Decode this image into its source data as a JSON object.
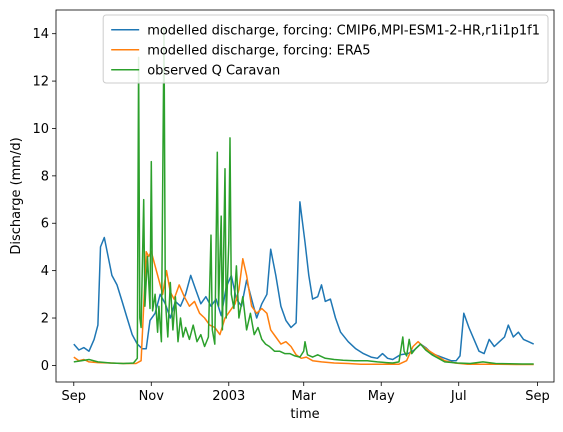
{
  "chart_data": {
    "type": "line",
    "xlabel": "time",
    "ylabel": "Discharge (mm/d)",
    "xlim": [
      "2002-08-18",
      "2003-09-14"
    ],
    "ylim": [
      -0.7,
      15.0
    ],
    "grid": false,
    "legend_position": "top-right",
    "x_ticks": [
      {
        "date": "2002-09-01",
        "label": "Sep"
      },
      {
        "date": "2002-11-01",
        "label": "Nov"
      },
      {
        "date": "2003-01-01",
        "label": "2003"
      },
      {
        "date": "2003-03-01",
        "label": "Mar"
      },
      {
        "date": "2003-05-01",
        "label": "May"
      },
      {
        "date": "2003-07-01",
        "label": "Jul"
      },
      {
        "date": "2003-09-01",
        "label": "Sep"
      }
    ],
    "y_ticks": [
      0,
      2,
      4,
      6,
      8,
      10,
      12,
      14
    ],
    "series": [
      {
        "name": "modelled discharge, forcing: CMIP6,MPI-ESM1-2-HR,r1i1p1f1",
        "color": "#1f77b4",
        "points": [
          [
            "2002-09-01",
            0.9
          ],
          [
            "2002-09-05",
            0.65
          ],
          [
            "2002-09-09",
            0.75
          ],
          [
            "2002-09-13",
            0.6
          ],
          [
            "2002-09-17",
            1.1
          ],
          [
            "2002-09-20",
            1.7
          ],
          [
            "2002-09-22",
            5.0
          ],
          [
            "2002-09-25",
            5.4
          ],
          [
            "2002-09-28",
            4.6
          ],
          [
            "2002-10-01",
            3.8
          ],
          [
            "2002-10-05",
            3.4
          ],
          [
            "2002-10-09",
            2.7
          ],
          [
            "2002-10-13",
            2.0
          ],
          [
            "2002-10-17",
            1.3
          ],
          [
            "2002-10-21",
            0.9
          ],
          [
            "2002-10-25",
            0.7
          ],
          [
            "2002-10-28",
            0.7
          ],
          [
            "2002-10-31",
            1.9
          ],
          [
            "2002-11-04",
            2.2
          ],
          [
            "2002-11-08",
            3.0
          ],
          [
            "2002-11-12",
            2.6
          ],
          [
            "2002-11-16",
            2.0
          ],
          [
            "2002-11-20",
            2.7
          ],
          [
            "2002-11-24",
            2.5
          ],
          [
            "2002-11-28",
            3.0
          ],
          [
            "2002-12-02",
            3.8
          ],
          [
            "2002-12-06",
            3.2
          ],
          [
            "2002-12-10",
            2.6
          ],
          [
            "2002-12-14",
            2.9
          ],
          [
            "2002-12-18",
            2.5
          ],
          [
            "2002-12-22",
            2.8
          ],
          [
            "2002-12-26",
            2.1
          ],
          [
            "2002-12-30",
            3.3
          ],
          [
            "2003-01-03",
            3.8
          ],
          [
            "2003-01-07",
            2.8
          ],
          [
            "2003-01-11",
            2.5
          ],
          [
            "2003-01-15",
            3.6
          ],
          [
            "2003-01-19",
            2.8
          ],
          [
            "2003-01-23",
            2.0
          ],
          [
            "2003-01-27",
            2.6
          ],
          [
            "2003-01-31",
            3.0
          ],
          [
            "2003-02-03",
            4.9
          ],
          [
            "2003-02-07",
            3.8
          ],
          [
            "2003-02-11",
            2.5
          ],
          [
            "2003-02-15",
            1.9
          ],
          [
            "2003-02-19",
            1.6
          ],
          [
            "2003-02-23",
            1.8
          ],
          [
            "2003-02-26",
            6.9
          ],
          [
            "2003-03-02",
            5.2
          ],
          [
            "2003-03-05",
            3.8
          ],
          [
            "2003-03-08",
            2.8
          ],
          [
            "2003-03-12",
            2.9
          ],
          [
            "2003-03-15",
            3.4
          ],
          [
            "2003-03-18",
            2.7
          ],
          [
            "2003-03-22",
            2.8
          ],
          [
            "2003-03-26",
            2.0
          ],
          [
            "2003-03-30",
            1.4
          ],
          [
            "2003-04-05",
            1.0
          ],
          [
            "2003-04-11",
            0.7
          ],
          [
            "2003-04-17",
            0.5
          ],
          [
            "2003-04-23",
            0.35
          ],
          [
            "2003-04-28",
            0.3
          ],
          [
            "2003-05-02",
            0.5
          ],
          [
            "2003-05-06",
            0.3
          ],
          [
            "2003-05-10",
            0.25
          ],
          [
            "2003-05-16",
            0.45
          ],
          [
            "2003-05-22",
            0.5
          ],
          [
            "2003-05-27",
            0.65
          ],
          [
            "2003-06-01",
            0.9
          ],
          [
            "2003-06-05",
            0.75
          ],
          [
            "2003-06-10",
            0.5
          ],
          [
            "2003-06-15",
            0.4
          ],
          [
            "2003-06-20",
            0.3
          ],
          [
            "2003-06-25",
            0.2
          ],
          [
            "2003-06-29",
            0.2
          ],
          [
            "2003-07-02",
            0.4
          ],
          [
            "2003-07-05",
            2.2
          ],
          [
            "2003-07-09",
            1.6
          ],
          [
            "2003-07-13",
            1.1
          ],
          [
            "2003-07-17",
            0.6
          ],
          [
            "2003-07-21",
            0.5
          ],
          [
            "2003-07-25",
            1.1
          ],
          [
            "2003-07-29",
            0.8
          ],
          [
            "2003-08-02",
            1.0
          ],
          [
            "2003-08-06",
            1.2
          ],
          [
            "2003-08-09",
            1.7
          ],
          [
            "2003-08-13",
            1.2
          ],
          [
            "2003-08-17",
            1.4
          ],
          [
            "2003-08-21",
            1.1
          ],
          [
            "2003-08-25",
            1.0
          ],
          [
            "2003-08-29",
            0.9
          ]
        ]
      },
      {
        "name": "modelled discharge, forcing: ERA5",
        "color": "#ff7f0e",
        "points": [
          [
            "2002-09-01",
            0.35
          ],
          [
            "2002-09-05",
            0.2
          ],
          [
            "2002-09-09",
            0.25
          ],
          [
            "2002-09-13",
            0.15
          ],
          [
            "2002-09-20",
            0.12
          ],
          [
            "2002-09-30",
            0.1
          ],
          [
            "2002-10-10",
            0.08
          ],
          [
            "2002-10-20",
            0.08
          ],
          [
            "2002-10-24",
            0.2
          ],
          [
            "2002-10-26",
            2.5
          ],
          [
            "2002-10-28",
            4.8
          ],
          [
            "2002-10-30",
            4.6
          ],
          [
            "2002-11-01",
            4.8
          ],
          [
            "2002-11-04",
            4.2
          ],
          [
            "2002-11-07",
            3.6
          ],
          [
            "2002-11-10",
            3.0
          ],
          [
            "2002-11-13",
            4.0
          ],
          [
            "2002-11-16",
            3.1
          ],
          [
            "2002-11-19",
            2.8
          ],
          [
            "2002-11-23",
            3.4
          ],
          [
            "2002-11-27",
            2.9
          ],
          [
            "2002-12-01",
            2.5
          ],
          [
            "2002-12-05",
            2.7
          ],
          [
            "2002-12-09",
            2.2
          ],
          [
            "2002-12-13",
            2.0
          ],
          [
            "2002-12-17",
            1.7
          ],
          [
            "2002-12-21",
            1.6
          ],
          [
            "2002-12-25",
            1.3
          ],
          [
            "2002-12-29",
            2.0
          ],
          [
            "2003-01-02",
            2.3
          ],
          [
            "2003-01-06",
            2.6
          ],
          [
            "2003-01-09",
            3.2
          ],
          [
            "2003-01-12",
            4.5
          ],
          [
            "2003-01-15",
            3.8
          ],
          [
            "2003-01-19",
            2.5
          ],
          [
            "2003-01-23",
            2.2
          ],
          [
            "2003-01-27",
            2.4
          ],
          [
            "2003-01-31",
            2.2
          ],
          [
            "2003-02-03",
            1.5
          ],
          [
            "2003-02-07",
            1.2
          ],
          [
            "2003-02-11",
            0.9
          ],
          [
            "2003-02-15",
            1.0
          ],
          [
            "2003-02-19",
            0.8
          ],
          [
            "2003-02-23",
            0.45
          ],
          [
            "2003-02-27",
            0.3
          ],
          [
            "2003-03-03",
            0.35
          ],
          [
            "2003-03-08",
            0.2
          ],
          [
            "2003-03-15",
            0.15
          ],
          [
            "2003-03-25",
            0.1
          ],
          [
            "2003-04-05",
            0.08
          ],
          [
            "2003-04-15",
            0.05
          ],
          [
            "2003-04-25",
            0.05
          ],
          [
            "2003-05-05",
            0.05
          ],
          [
            "2003-05-15",
            0.05
          ],
          [
            "2003-05-21",
            0.2
          ],
          [
            "2003-05-26",
            0.8
          ],
          [
            "2003-05-30",
            1.0
          ],
          [
            "2003-06-03",
            0.8
          ],
          [
            "2003-06-08",
            0.6
          ],
          [
            "2003-06-14",
            0.4
          ],
          [
            "2003-06-20",
            0.2
          ],
          [
            "2003-06-28",
            0.1
          ],
          [
            "2003-07-08",
            0.05
          ],
          [
            "2003-07-20",
            0.05
          ],
          [
            "2003-08-01",
            0.05
          ],
          [
            "2003-08-15",
            0.04
          ],
          [
            "2003-08-29",
            0.04
          ]
        ]
      },
      {
        "name": "observed Q Caravan",
        "color": "#2ca02c",
        "points": [
          [
            "2002-09-01",
            0.15
          ],
          [
            "2002-09-07",
            0.2
          ],
          [
            "2002-09-13",
            0.25
          ],
          [
            "2002-09-20",
            0.15
          ],
          [
            "2002-09-30",
            0.1
          ],
          [
            "2002-10-10",
            0.08
          ],
          [
            "2002-10-18",
            0.1
          ],
          [
            "2002-10-21",
            0.3
          ],
          [
            "2002-10-22",
            13.0
          ],
          [
            "2002-10-23",
            2.0
          ],
          [
            "2002-10-24",
            1.6
          ],
          [
            "2002-10-26",
            7.0
          ],
          [
            "2002-10-27",
            2.5
          ],
          [
            "2002-10-29",
            4.6
          ],
          [
            "2002-10-31",
            2.4
          ],
          [
            "2002-11-01",
            8.6
          ],
          [
            "2002-11-02",
            2.3
          ],
          [
            "2002-11-04",
            3.0
          ],
          [
            "2002-11-06",
            1.4
          ],
          [
            "2002-11-07",
            2.5
          ],
          [
            "2002-11-09",
            1.0
          ],
          [
            "2002-11-11",
            14.3
          ],
          [
            "2002-11-12",
            2.8
          ],
          [
            "2002-11-14",
            1.2
          ],
          [
            "2002-11-16",
            3.5
          ],
          [
            "2002-11-18",
            1.5
          ],
          [
            "2002-11-20",
            2.9
          ],
          [
            "2002-11-22",
            1.0
          ],
          [
            "2002-11-24",
            2.0
          ],
          [
            "2002-11-26",
            1.2
          ],
          [
            "2002-11-28",
            1.6
          ],
          [
            "2002-12-01",
            1.1
          ],
          [
            "2002-12-04",
            1.7
          ],
          [
            "2002-12-07",
            1.0
          ],
          [
            "2002-12-10",
            1.3
          ],
          [
            "2002-12-13",
            0.8
          ],
          [
            "2002-12-16",
            1.2
          ],
          [
            "2002-12-18",
            5.5
          ],
          [
            "2002-12-19",
            1.5
          ],
          [
            "2002-12-21",
            0.9
          ],
          [
            "2002-12-23",
            9.0
          ],
          [
            "2002-12-24",
            2.5
          ],
          [
            "2002-12-26",
            6.3
          ],
          [
            "2002-12-27",
            1.5
          ],
          [
            "2002-12-29",
            8.3
          ],
          [
            "2002-12-30",
            2.0
          ],
          [
            "2003-01-01",
            5.2
          ],
          [
            "2003-01-02",
            9.6
          ],
          [
            "2003-01-03",
            3.0
          ],
          [
            "2003-01-05",
            2.4
          ],
          [
            "2003-01-07",
            4.2
          ],
          [
            "2003-01-09",
            2.0
          ],
          [
            "2003-01-12",
            2.9
          ],
          [
            "2003-01-15",
            1.5
          ],
          [
            "2003-01-18",
            2.2
          ],
          [
            "2003-01-21",
            1.3
          ],
          [
            "2003-01-24",
            1.6
          ],
          [
            "2003-01-27",
            1.1
          ],
          [
            "2003-01-30",
            0.9
          ],
          [
            "2003-02-02",
            0.8
          ],
          [
            "2003-02-06",
            0.6
          ],
          [
            "2003-02-10",
            0.6
          ],
          [
            "2003-02-14",
            0.5
          ],
          [
            "2003-02-18",
            0.5
          ],
          [
            "2003-02-22",
            0.4
          ],
          [
            "2003-02-26",
            0.35
          ],
          [
            "2003-03-01",
            0.6
          ],
          [
            "2003-03-02",
            1.0
          ],
          [
            "2003-03-04",
            0.45
          ],
          [
            "2003-03-08",
            0.35
          ],
          [
            "2003-03-12",
            0.45
          ],
          [
            "2003-03-18",
            0.3
          ],
          [
            "2003-03-25",
            0.25
          ],
          [
            "2003-04-01",
            0.22
          ],
          [
            "2003-04-10",
            0.2
          ],
          [
            "2003-04-20",
            0.2
          ],
          [
            "2003-04-28",
            0.15
          ],
          [
            "2003-05-05",
            0.12
          ],
          [
            "2003-05-10",
            0.1
          ],
          [
            "2003-05-15",
            0.15
          ],
          [
            "2003-05-18",
            1.2
          ],
          [
            "2003-05-19",
            0.6
          ],
          [
            "2003-05-21",
            0.4
          ],
          [
            "2003-05-23",
            1.1
          ],
          [
            "2003-05-25",
            0.5
          ],
          [
            "2003-05-28",
            0.7
          ],
          [
            "2003-06-01",
            0.9
          ],
          [
            "2003-06-05",
            0.65
          ],
          [
            "2003-06-10",
            0.45
          ],
          [
            "2003-06-15",
            0.3
          ],
          [
            "2003-06-20",
            0.15
          ],
          [
            "2003-06-30",
            0.1
          ],
          [
            "2003-07-10",
            0.08
          ],
          [
            "2003-07-20",
            0.15
          ],
          [
            "2003-07-30",
            0.08
          ],
          [
            "2003-08-10",
            0.07
          ],
          [
            "2003-08-20",
            0.06
          ],
          [
            "2003-08-29",
            0.06
          ]
        ]
      }
    ]
  }
}
